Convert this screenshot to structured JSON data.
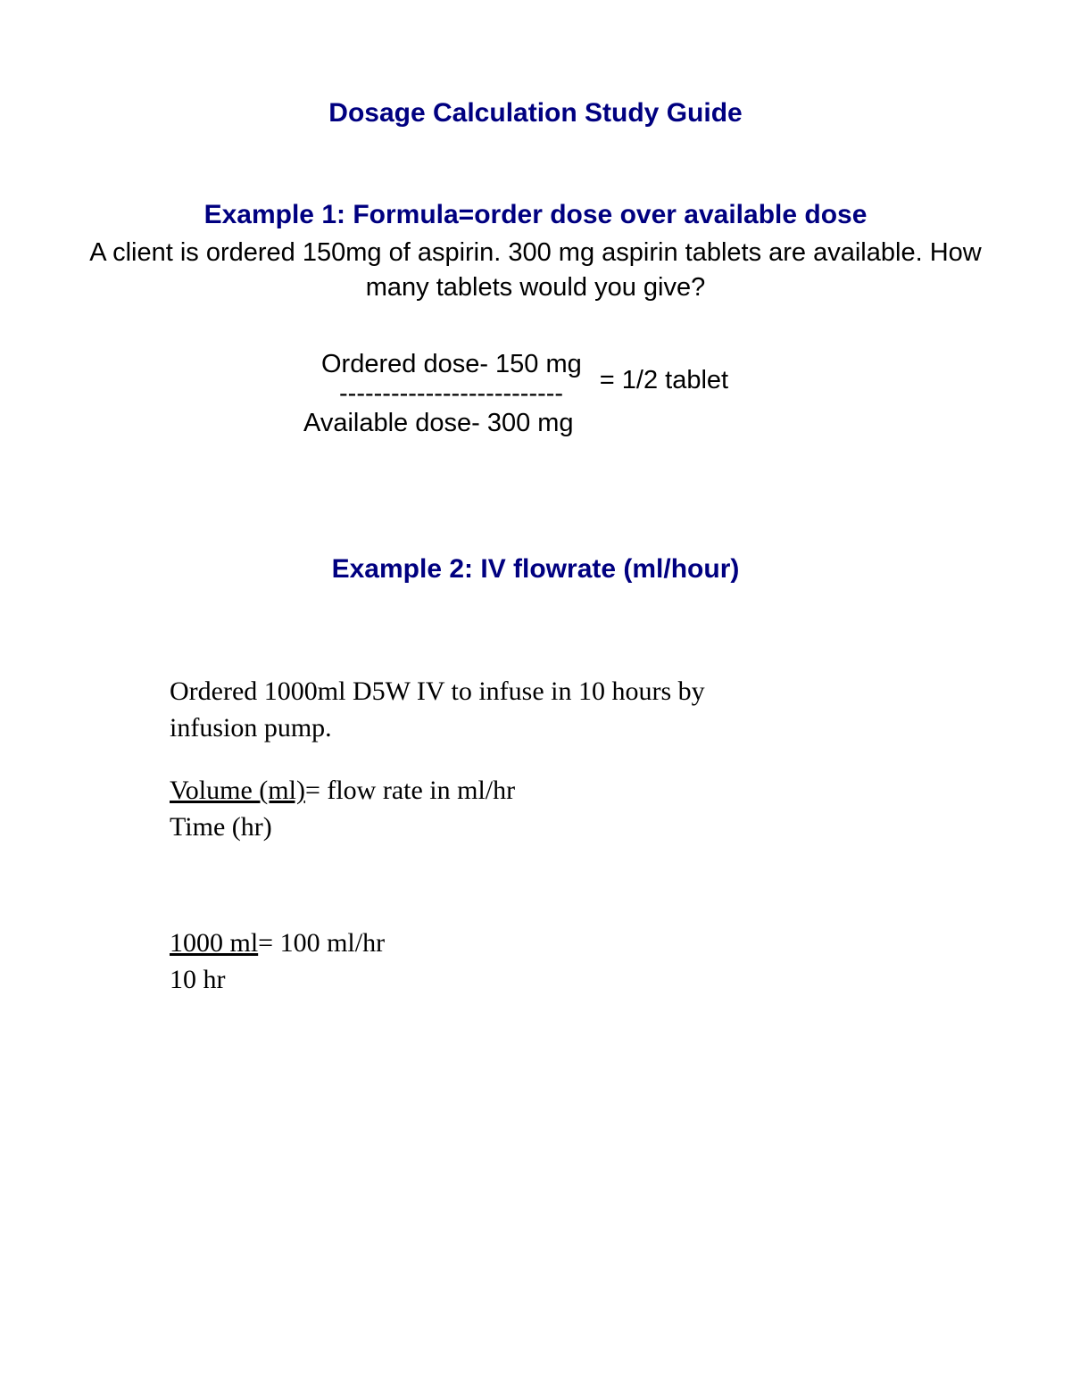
{
  "title": "Dosage Calculation Study Guide",
  "example1": {
    "heading": "Example 1: Formula=order dose over available dose",
    "question": "A client is ordered 150mg of aspirin. 300 mg aspirin tablets are available. How many tablets would you give?",
    "ordered_label": "Ordered dose- 150 mg",
    "divider": "--------------------------",
    "available_label": "Available dose- 300 mg",
    "result": "= 1/2 tablet"
  },
  "example2": {
    "heading": "Example 2: IV flowrate (ml/hour)",
    "question": "Ordered 1000ml D5W IV to infuse in 10 hours by infusion pump.",
    "formula_top": "Volume (ml)",
    "formula_rest": "= flow rate in ml/hr",
    "formula_bottom": "Time (hr)",
    "calc_top": "1000 ml",
    "calc_rest": "= 100 ml/hr",
    "calc_bottom": "10 hr"
  },
  "colors": {
    "heading_color": "#000080",
    "text_color": "#000000",
    "background": "#ffffff"
  },
  "typography": {
    "sans_family": "Arial",
    "serif_family": "Times New Roman",
    "title_fontsize": 30,
    "body_fontsize": 29,
    "serif_fontsize": 30
  }
}
